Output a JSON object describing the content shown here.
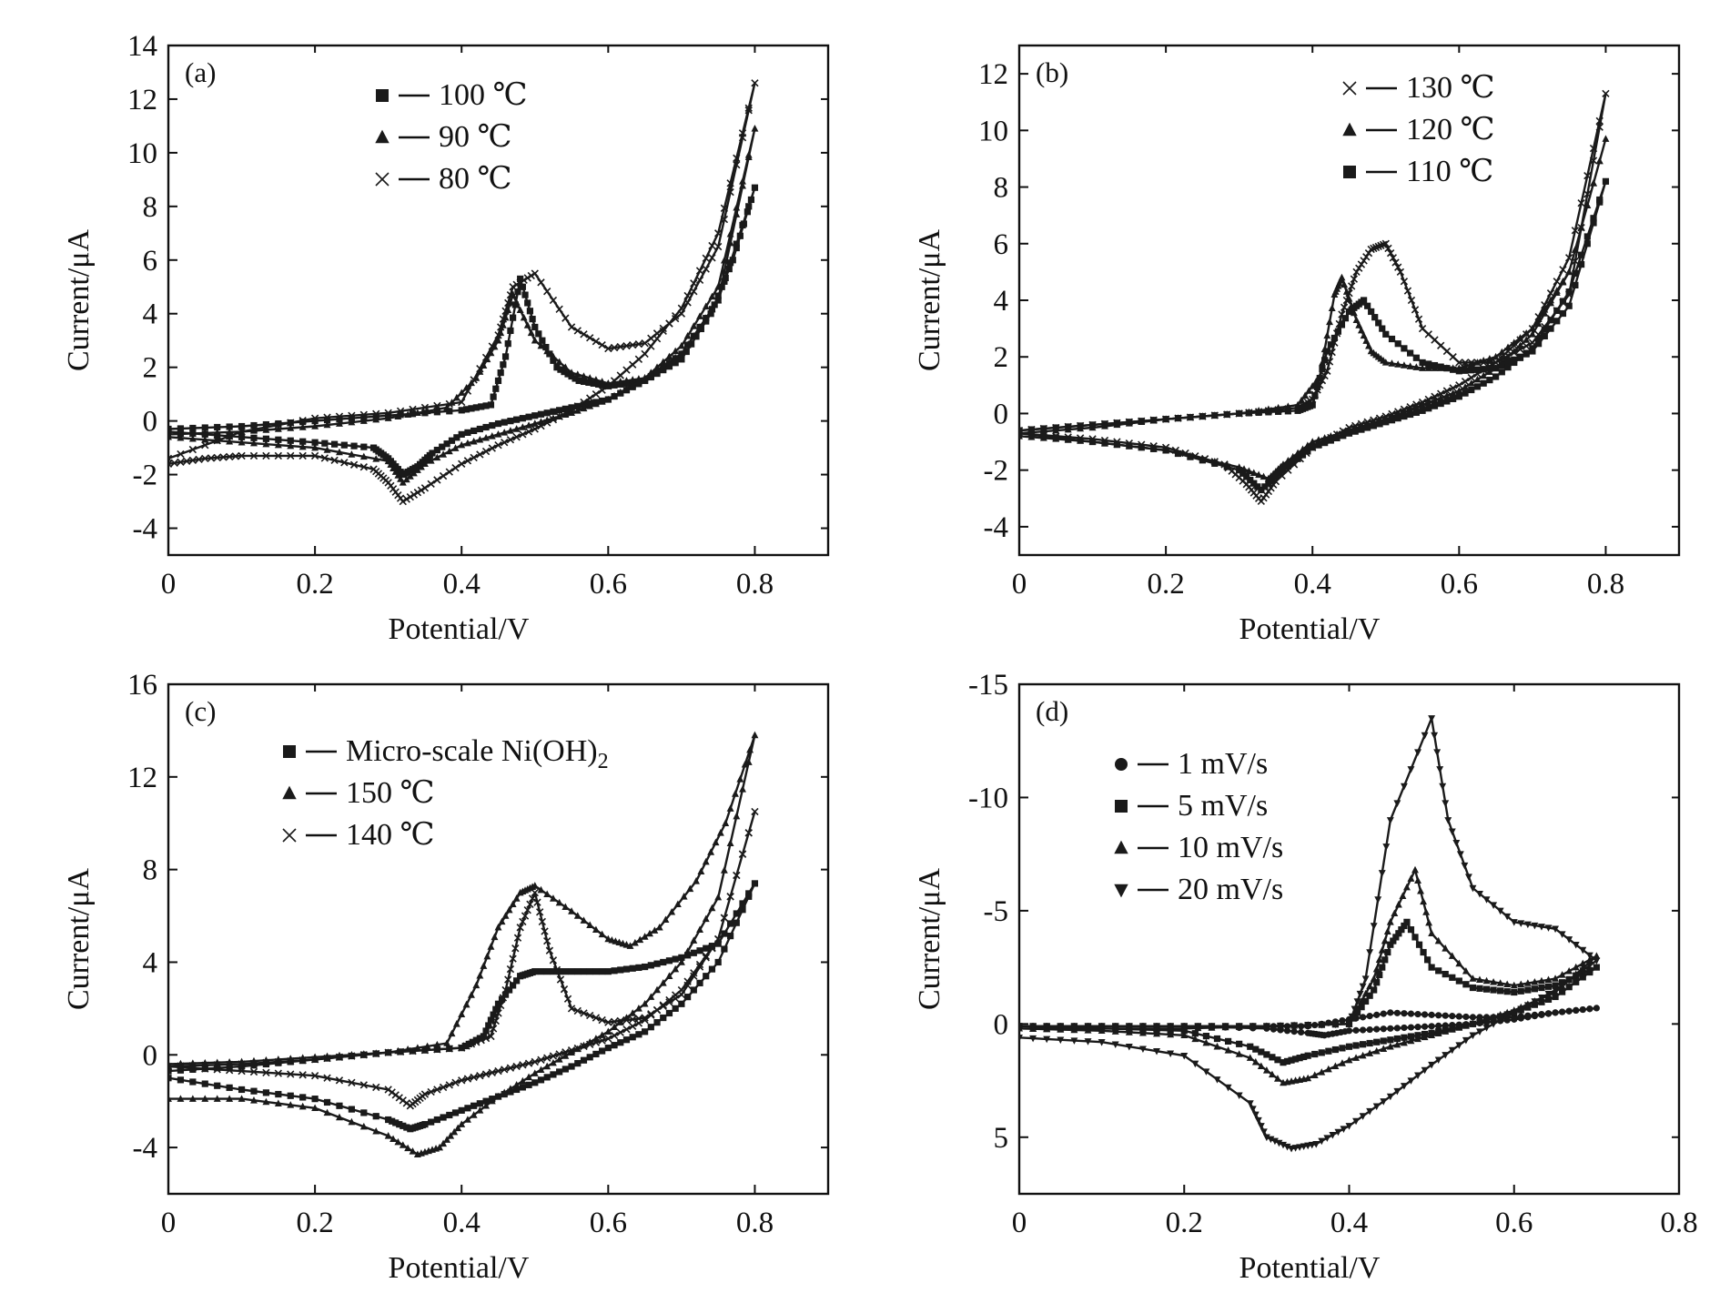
{
  "chart_data": [
    {
      "type": "line",
      "panel_label": "(a)",
      "xlabel": "Potential/V",
      "ylabel": "Current/μA",
      "xlim": [
        0,
        0.9
      ],
      "ylim": [
        -5,
        14
      ],
      "x_ticks": [
        0,
        0.2,
        0.4,
        0.6,
        0.8
      ],
      "x_tick_labels": [
        "0",
        "0.2",
        "0.4",
        "0.6",
        "0.8"
      ],
      "y_ticks": [
        -4,
        -2,
        0,
        2,
        4,
        6,
        8,
        10,
        12,
        14
      ],
      "y_tick_labels": [
        "-4",
        "-2",
        "0",
        "2",
        "4",
        "6",
        "8",
        "10",
        "12",
        "14"
      ],
      "legend_position": "top-center",
      "series": [
        {
          "name": "100 ℃",
          "marker": "square",
          "x": [
            0,
            0.1,
            0.2,
            0.3,
            0.4,
            0.44,
            0.46,
            0.48,
            0.5,
            0.53,
            0.56,
            0.6,
            0.65,
            0.7,
            0.74,
            0.77,
            0.8,
            0.75,
            0.7,
            0.65,
            0.6,
            0.55,
            0.5,
            0.45,
            0.4,
            0.36,
            0.34,
            0.32,
            0.3,
            0.28,
            0.2,
            0.1,
            0
          ],
          "y": [
            -0.3,
            -0.2,
            0,
            0.2,
            0.4,
            0.6,
            2.4,
            5.3,
            3.5,
            2.0,
            1.5,
            1.3,
            1.5,
            2.3,
            4.0,
            6.0,
            8.7,
            4.5,
            2.5,
            1.5,
            0.8,
            0.5,
            0.2,
            -0.1,
            -0.5,
            -1.2,
            -1.7,
            -2.0,
            -1.4,
            -1.0,
            -0.8,
            -0.6,
            -0.4
          ]
        },
        {
          "name": "90 ℃",
          "marker": "triangle",
          "x": [
            0,
            0.1,
            0.2,
            0.3,
            0.38,
            0.42,
            0.45,
            0.47,
            0.5,
            0.55,
            0.6,
            0.65,
            0.7,
            0.75,
            0.8,
            0.75,
            0.7,
            0.65,
            0.6,
            0.55,
            0.5,
            0.45,
            0.4,
            0.35,
            0.32,
            0.3,
            0.2,
            0.1,
            0
          ],
          "y": [
            -0.5,
            -0.4,
            -0.2,
            0.1,
            0.5,
            1.6,
            3.0,
            4.7,
            3.0,
            1.8,
            1.4,
            1.6,
            2.5,
            4.5,
            10.9,
            5.0,
            2.8,
            1.6,
            0.8,
            0.3,
            -0.1,
            -0.5,
            -0.9,
            -1.6,
            -2.3,
            -1.5,
            -1.0,
            -0.8,
            -0.6
          ]
        },
        {
          "name": "80 ℃",
          "marker": "cross",
          "x": [
            0,
            0.05,
            0.1,
            0.2,
            0.28,
            0.3,
            0.32,
            0.35,
            0.4,
            0.45,
            0.5,
            0.55,
            0.6,
            0.65,
            0.7,
            0.75,
            0.8,
            0.75,
            0.7,
            0.65,
            0.6,
            0.55,
            0.5,
            0.47,
            0.45,
            0.4,
            0.3,
            0.2,
            0.1,
            0
          ],
          "y": [
            -1.6,
            -1.4,
            -1.3,
            -1.3,
            -1.8,
            -2.3,
            -3.0,
            -2.5,
            -1.6,
            -0.9,
            -0.3,
            0.4,
            1.3,
            2.5,
            4.2,
            7.0,
            12.6,
            6.5,
            4.0,
            2.9,
            2.7,
            3.5,
            5.5,
            5.0,
            3.2,
            0.7,
            0.3,
            0.1,
            -0.4,
            -1.4
          ]
        }
      ]
    },
    {
      "type": "line",
      "panel_label": "(b)",
      "xlabel": "Potential/V",
      "ylabel": "Current/μA",
      "xlim": [
        0,
        0.9
      ],
      "ylim": [
        -5,
        13
      ],
      "x_ticks": [
        0,
        0.2,
        0.4,
        0.6,
        0.8
      ],
      "x_tick_labels": [
        "0",
        "0.2",
        "0.4",
        "0.6",
        "0.8"
      ],
      "y_ticks": [
        -4,
        -2,
        0,
        2,
        4,
        6,
        8,
        10,
        12
      ],
      "y_tick_labels": [
        "-4",
        "-2",
        "0",
        "2",
        "4",
        "6",
        "8",
        "10",
        "12"
      ],
      "legend_position": "top-right",
      "series": [
        {
          "name": "130 ℃",
          "marker": "cross",
          "x": [
            0,
            0.1,
            0.2,
            0.3,
            0.38,
            0.4,
            0.42,
            0.44,
            0.46,
            0.48,
            0.5,
            0.52,
            0.55,
            0.6,
            0.65,
            0.7,
            0.75,
            0.8,
            0.75,
            0.7,
            0.65,
            0.6,
            0.55,
            0.5,
            0.45,
            0.4,
            0.35,
            0.33,
            0.31,
            0.28,
            0.2,
            0.1,
            0
          ],
          "y": [
            -0.6,
            -0.4,
            -0.2,
            0,
            0.2,
            0.5,
            1.5,
            3.5,
            5.0,
            5.8,
            6.0,
            5.0,
            3.0,
            1.8,
            1.8,
            2.5,
            4.2,
            11.3,
            5.5,
            3.0,
            1.8,
            1.0,
            0.4,
            -0.1,
            -0.5,
            -1.2,
            -2.4,
            -3.1,
            -2.5,
            -1.8,
            -1.2,
            -0.9,
            -0.7
          ]
        },
        {
          "name": "120 ℃",
          "marker": "triangle",
          "x": [
            0,
            0.1,
            0.2,
            0.3,
            0.38,
            0.41,
            0.43,
            0.44,
            0.46,
            0.48,
            0.5,
            0.55,
            0.6,
            0.65,
            0.7,
            0.75,
            0.8,
            0.75,
            0.7,
            0.65,
            0.6,
            0.55,
            0.5,
            0.45,
            0.4,
            0.36,
            0.34,
            0.3,
            0.2,
            0.1,
            0
          ],
          "y": [
            -0.7,
            -0.5,
            -0.2,
            0,
            0.3,
            1.3,
            4.2,
            4.8,
            3.3,
            2.2,
            1.8,
            1.6,
            1.6,
            2.0,
            3.0,
            5.0,
            9.7,
            5.0,
            2.8,
            1.6,
            0.8,
            0.3,
            -0.2,
            -0.6,
            -1.0,
            -1.8,
            -2.3,
            -1.9,
            -1.3,
            -1.0,
            -0.8
          ]
        },
        {
          "name": "110 ℃",
          "marker": "square",
          "x": [
            0,
            0.1,
            0.2,
            0.3,
            0.38,
            0.4,
            0.42,
            0.45,
            0.47,
            0.5,
            0.55,
            0.6,
            0.65,
            0.7,
            0.75,
            0.8,
            0.75,
            0.7,
            0.65,
            0.6,
            0.55,
            0.5,
            0.45,
            0.4,
            0.36,
            0.33,
            0.3,
            0.2,
            0.1,
            0
          ],
          "y": [
            -0.6,
            -0.4,
            -0.2,
            0,
            0.1,
            0.3,
            2.2,
            3.6,
            4.0,
            2.8,
            1.8,
            1.5,
            1.6,
            2.2,
            3.8,
            8.2,
            4.3,
            2.3,
            1.3,
            0.6,
            0.1,
            -0.3,
            -0.7,
            -1.2,
            -2.0,
            -2.7,
            -2.0,
            -1.3,
            -1.0,
            -0.7
          ]
        }
      ]
    },
    {
      "type": "line",
      "panel_label": "(c)",
      "xlabel": "Potential/V",
      "ylabel": "Current/μA",
      "xlim": [
        0,
        0.9
      ],
      "ylim": [
        -6,
        16
      ],
      "x_ticks": [
        0,
        0.2,
        0.4,
        0.6,
        0.8
      ],
      "x_tick_labels": [
        "0",
        "0.2",
        "0.4",
        "0.6",
        "0.8"
      ],
      "y_ticks": [
        -4,
        0,
        4,
        8,
        12,
        16
      ],
      "y_tick_labels": [
        "-4",
        "0",
        "4",
        "8",
        "12",
        "16"
      ],
      "legend_position": "top-center",
      "series": [
        {
          "name": "Micro-scale Ni(OH)2",
          "marker": "square",
          "x": [
            0,
            0.1,
            0.2,
            0.3,
            0.4,
            0.43,
            0.45,
            0.48,
            0.5,
            0.55,
            0.6,
            0.65,
            0.7,
            0.75,
            0.8,
            0.75,
            0.7,
            0.65,
            0.6,
            0.55,
            0.5,
            0.45,
            0.4,
            0.35,
            0.33,
            0.3,
            0.2,
            0.1,
            0
          ],
          "y": [
            -0.7,
            -0.5,
            -0.2,
            0.1,
            0.3,
            0.8,
            2.2,
            3.4,
            3.6,
            3.6,
            3.6,
            3.8,
            4.2,
            4.8,
            7.4,
            4.0,
            2.2,
            1.0,
            0.3,
            -0.5,
            -1.2,
            -1.8,
            -2.4,
            -3.0,
            -3.2,
            -2.8,
            -1.9,
            -1.5,
            -1.0
          ]
        },
        {
          "name": "150 ℃",
          "marker": "triangle",
          "x": [
            0,
            0.1,
            0.2,
            0.3,
            0.38,
            0.42,
            0.45,
            0.48,
            0.5,
            0.55,
            0.6,
            0.63,
            0.67,
            0.72,
            0.76,
            0.8,
            0.75,
            0.7,
            0.65,
            0.6,
            0.55,
            0.5,
            0.45,
            0.4,
            0.37,
            0.34,
            0.3,
            0.2,
            0.1,
            0
          ],
          "y": [
            -0.4,
            -0.3,
            -0.1,
            0.1,
            0.5,
            3.0,
            5.5,
            7.0,
            7.3,
            6.2,
            5.0,
            4.7,
            5.5,
            7.5,
            10.0,
            13.8,
            6.8,
            4.0,
            2.2,
            1.0,
            0.1,
            -0.8,
            -1.8,
            -3.0,
            -4.0,
            -4.3,
            -3.5,
            -2.3,
            -1.9,
            -1.9
          ]
        },
        {
          "name": "140 ℃",
          "marker": "cross",
          "x": [
            0,
            0.1,
            0.2,
            0.3,
            0.4,
            0.44,
            0.46,
            0.48,
            0.5,
            0.52,
            0.55,
            0.6,
            0.65,
            0.7,
            0.75,
            0.8,
            0.75,
            0.7,
            0.65,
            0.6,
            0.55,
            0.5,
            0.45,
            0.4,
            0.35,
            0.33,
            0.3,
            0.2,
            0.1,
            0
          ],
          "y": [
            -0.5,
            -0.4,
            -0.2,
            0.1,
            0.3,
            0.8,
            2.8,
            5.5,
            7.0,
            4.5,
            2.0,
            1.4,
            1.6,
            2.6,
            5.0,
            10.5,
            5.0,
            2.8,
            1.5,
            0.7,
            0.2,
            -0.3,
            -0.7,
            -1.1,
            -1.7,
            -2.2,
            -1.5,
            -0.9,
            -0.7,
            -0.5
          ]
        }
      ]
    },
    {
      "type": "line",
      "panel_label": "(d)",
      "xlabel": "Potential/V",
      "ylabel": "Current/μA",
      "xlim": [
        0,
        0.8
      ],
      "ylim": [
        7.5,
        -15
      ],
      "y_axis_inverted": true,
      "x_ticks": [
        0,
        0.2,
        0.4,
        0.6,
        0.8
      ],
      "x_tick_labels": [
        "0",
        "0.2",
        "0.4",
        "0.6",
        "0.8"
      ],
      "y_ticks": [
        -15,
        -10,
        -5,
        0,
        5
      ],
      "y_tick_labels": [
        "-15",
        "-10",
        "-5",
        "0",
        "5"
      ],
      "legend_position": "top-left",
      "series": [
        {
          "name": "1 mV/s",
          "marker": "circle",
          "x": [
            0,
            0.1,
            0.2,
            0.3,
            0.35,
            0.4,
            0.45,
            0.5,
            0.55,
            0.6,
            0.65,
            0.7,
            0.65,
            0.6,
            0.55,
            0.5,
            0.45,
            0.4,
            0.37,
            0.35,
            0.3,
            0.2,
            0.1,
            0
          ],
          "y": [
            0.1,
            0.1,
            0.1,
            0.1,
            0.1,
            -0.2,
            -0.5,
            -0.4,
            -0.3,
            -0.3,
            -0.5,
            -0.7,
            -0.5,
            -0.2,
            0,
            0.1,
            0.2,
            0.3,
            0.5,
            0.4,
            0.2,
            0.1,
            0.1,
            0.1
          ]
        },
        {
          "name": "5 mV/s",
          "marker": "square",
          "x": [
            0,
            0.1,
            0.2,
            0.3,
            0.4,
            0.43,
            0.45,
            0.47,
            0.5,
            0.55,
            0.6,
            0.65,
            0.7,
            0.65,
            0.6,
            0.55,
            0.5,
            0.45,
            0.4,
            0.35,
            0.32,
            0.28,
            0.2,
            0.1,
            0
          ],
          "y": [
            0.1,
            0.1,
            0.1,
            0.1,
            0,
            -1.5,
            -3.5,
            -4.5,
            -2.5,
            -1.6,
            -1.4,
            -1.7,
            -2.5,
            -1.2,
            -0.5,
            0,
            0.4,
            0.7,
            1.0,
            1.4,
            1.7,
            1.0,
            0.3,
            0.2,
            0.1
          ]
        },
        {
          "name": "10 mV/s",
          "marker": "triangle",
          "x": [
            0,
            0.1,
            0.2,
            0.3,
            0.4,
            0.43,
            0.45,
            0.48,
            0.5,
            0.55,
            0.6,
            0.65,
            0.7,
            0.65,
            0.6,
            0.55,
            0.5,
            0.45,
            0.4,
            0.35,
            0.32,
            0.28,
            0.2,
            0.1,
            0
          ],
          "y": [
            0.2,
            0.2,
            0.2,
            0.1,
            0,
            -2.0,
            -4.5,
            -6.8,
            -4.0,
            -2.0,
            -1.7,
            -2.0,
            -3.0,
            -1.4,
            -0.6,
            0,
            0.5,
            1.0,
            1.6,
            2.4,
            2.6,
            1.5,
            0.5,
            0.3,
            0.2
          ]
        },
        {
          "name": "20 mV/s",
          "marker": "triangle-down",
          "x": [
            0,
            0.1,
            0.2,
            0.28,
            0.3,
            0.33,
            0.36,
            0.4,
            0.45,
            0.5,
            0.55,
            0.6,
            0.65,
            0.7,
            0.65,
            0.6,
            0.55,
            0.52,
            0.5,
            0.45,
            0.42,
            0.4,
            0.3,
            0.2,
            0.1,
            0
          ],
          "y": [
            0.6,
            0.8,
            1.4,
            3.5,
            5.0,
            5.5,
            5.3,
            4.5,
            3.2,
            1.8,
            0.5,
            -0.5,
            -1.5,
            -2.8,
            -4.2,
            -4.5,
            -6.0,
            -9.0,
            -13.5,
            -9.0,
            -2.0,
            0,
            0.1,
            0.1,
            0.1,
            0.1
          ]
        }
      ]
    }
  ]
}
